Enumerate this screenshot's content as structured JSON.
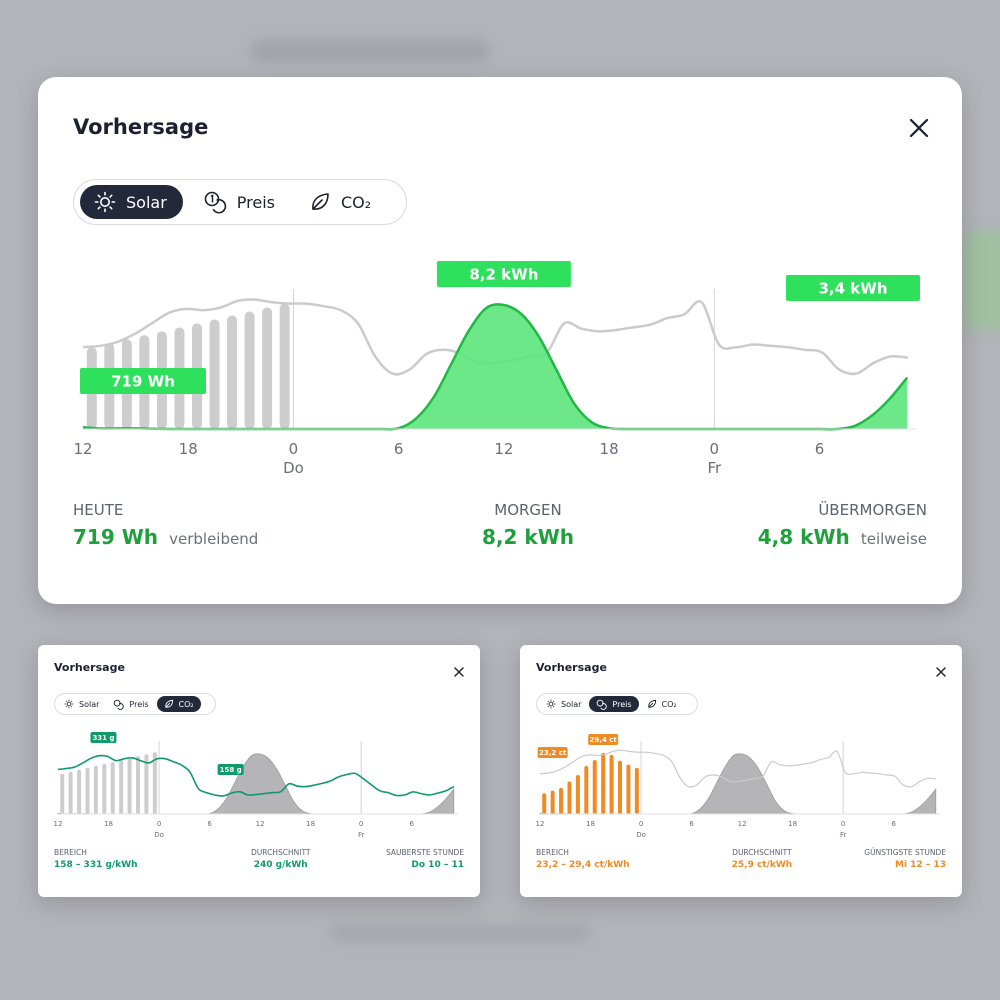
{
  "main": {
    "title": "Vorhersage",
    "tabs": [
      {
        "label": "Solar",
        "icon": "sun-icon",
        "active": true
      },
      {
        "label": "Preis",
        "icon": "coins-icon",
        "active": false
      },
      {
        "label": "CO₂",
        "icon": "leaf-icon",
        "active": false
      }
    ],
    "stats": {
      "today": {
        "label": "HEUTE",
        "value": "719 Wh",
        "sub": "verbleibend"
      },
      "tomorrow": {
        "label": "MORGEN",
        "value": "8,2 kWh"
      },
      "after": {
        "label": "ÜBERMORGEN",
        "value": "4,8 kWh",
        "sub": "teilweise"
      }
    },
    "colors": {
      "accent": "#1ea03c",
      "fill": "#5ce57c",
      "badge": "#2fe05c",
      "gray": "#c9c9cb"
    }
  },
  "co2_panel": {
    "title": "Vorhersage",
    "tabs": [
      {
        "label": "Solar",
        "icon": "sun-icon",
        "active": false
      },
      {
        "label": "Preis",
        "icon": "coins-icon",
        "active": false
      },
      {
        "label": "CO₂",
        "icon": "leaf-icon",
        "active": true
      }
    ],
    "stats": {
      "range": {
        "label": "BEREICH",
        "value": "158 – 331 g/kWh"
      },
      "avg": {
        "label": "DURCHSCHNITT",
        "value": "240 g/kWh"
      },
      "best": {
        "label": "SAUBERSTE STUNDE",
        "value": "Do 10 – 11"
      }
    },
    "colors": {
      "accent": "#0f9a6a"
    }
  },
  "price_panel": {
    "title": "Vorhersage",
    "tabs": [
      {
        "label": "Solar",
        "icon": "sun-icon",
        "active": false
      },
      {
        "label": "Preis",
        "icon": "coins-icon",
        "active": true
      },
      {
        "label": "CO₂",
        "icon": "leaf-icon",
        "active": false
      }
    ],
    "stats": {
      "range": {
        "label": "BEREICH",
        "value": "23,2 – 29,4 ct/kWh"
      },
      "avg": {
        "label": "DURCHSCHNITT",
        "value": "25,9 ct/kWh"
      },
      "best": {
        "label": "GÜNSTIGSTE STUNDE",
        "value": "Mi 12 – 13"
      }
    },
    "colors": {
      "accent": "#f08a24"
    }
  },
  "chart_data": [
    {
      "type": "area",
      "x": [
        12,
        13,
        14,
        15,
        16,
        17,
        18,
        19,
        20,
        21,
        22,
        23,
        24,
        25,
        26,
        27,
        28,
        29,
        30,
        31,
        32,
        33,
        34,
        35,
        36,
        37,
        38,
        39,
        40,
        41,
        42,
        43,
        44,
        45,
        46,
        47,
        48,
        49,
        50,
        51,
        52,
        53,
        54,
        55,
        56,
        57,
        58,
        59
      ],
      "xtick_labels": [
        "12",
        "18",
        "0",
        "6",
        "12",
        "18",
        "0",
        "6"
      ],
      "xtick_positions": [
        12,
        18,
        24,
        30,
        36,
        42,
        48,
        54
      ],
      "day_labels": [
        {
          "x": 24,
          "label": "Do"
        },
        {
          "x": 48,
          "label": "Fr"
        }
      ],
      "series": [
        {
          "values": [
            0.12,
            0.03,
            0.04,
            0.04,
            0.02,
            0,
            0,
            0,
            0,
            0,
            0,
            0,
            0,
            0,
            0,
            0,
            0,
            0,
            0.05,
            0.7,
            2.1,
            4.3,
            6.5,
            8.0,
            8.2,
            7.6,
            6.1,
            3.9,
            1.7,
            0.45,
            0.05,
            0,
            0,
            0,
            0,
            0,
            0,
            0,
            0,
            0,
            0,
            0,
            0,
            0,
            0.2,
            0.9,
            2.0,
            3.4
          ]
        }
      ],
      "annotations": [
        "719 Wh",
        "8,2 kWh",
        "3,4 kWh"
      ],
      "past_bars_count": 12
    },
    {
      "type": "line",
      "series": [
        {
          "values": [
            272,
            276,
            282,
            300,
            320,
            331,
            328,
            310,
            318,
            322,
            310,
            300,
            318,
            318,
            305,
            290,
            260,
            190,
            172,
            162,
            158,
            170,
            176,
            162,
            164,
            168,
            172,
            176,
            210,
            200,
            198,
            204,
            212,
            222,
            240,
            250,
            255,
            232,
            205,
            180,
            172,
            160,
            162,
            175,
            168,
            162,
            170,
            180,
            198
          ]
        }
      ],
      "annotations": [
        "331 g",
        "158 g"
      ]
    },
    {
      "type": "bar",
      "series": [
        {
          "values": [
            23.2,
            23.6,
            24.0,
            25.0,
            26.0,
            27.4,
            28.3,
            29.4,
            29.1,
            28.2,
            27.6,
            27.1,
            26.4
          ]
        }
      ],
      "annotations": [
        "23,2 ct",
        "29,4 ct"
      ]
    }
  ]
}
